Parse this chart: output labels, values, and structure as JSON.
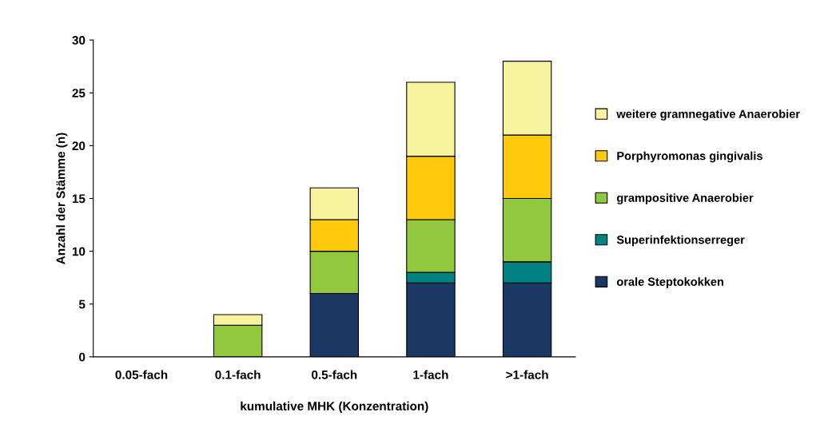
{
  "chart_data": {
    "type": "bar",
    "stacked": true,
    "xlabel": "kumulative MHK (Konzentration)",
    "ylabel": "Anzahl der Stämme (n)",
    "categories": [
      "0.05-fach",
      "0.1-fach",
      "0.5-fach",
      "1-fach",
      ">1-fach"
    ],
    "series": [
      {
        "name": "orale Steptokokken",
        "color": "#1b3764",
        "values": [
          0,
          0,
          6,
          7,
          7
        ]
      },
      {
        "name": "Superinfektionserreger",
        "color": "#008282",
        "values": [
          0,
          0,
          0,
          1,
          2
        ]
      },
      {
        "name": "grampositive Anaerobier",
        "color": "#92c83e",
        "values": [
          0,
          3,
          4,
          5,
          6
        ]
      },
      {
        "name": "Porphyromonas gingivalis",
        "color": "#ffc90e",
        "values": [
          0,
          0,
          3,
          6,
          6
        ]
      },
      {
        "name": "weitere gramnegative Anaerobier",
        "color": "#f7f39e",
        "values": [
          0,
          1,
          3,
          7,
          7
        ]
      }
    ],
    "ylim": [
      0,
      30
    ],
    "yticks": [
      0,
      5,
      10,
      15,
      20,
      25,
      30
    ],
    "grid": false,
    "legend": "right"
  }
}
